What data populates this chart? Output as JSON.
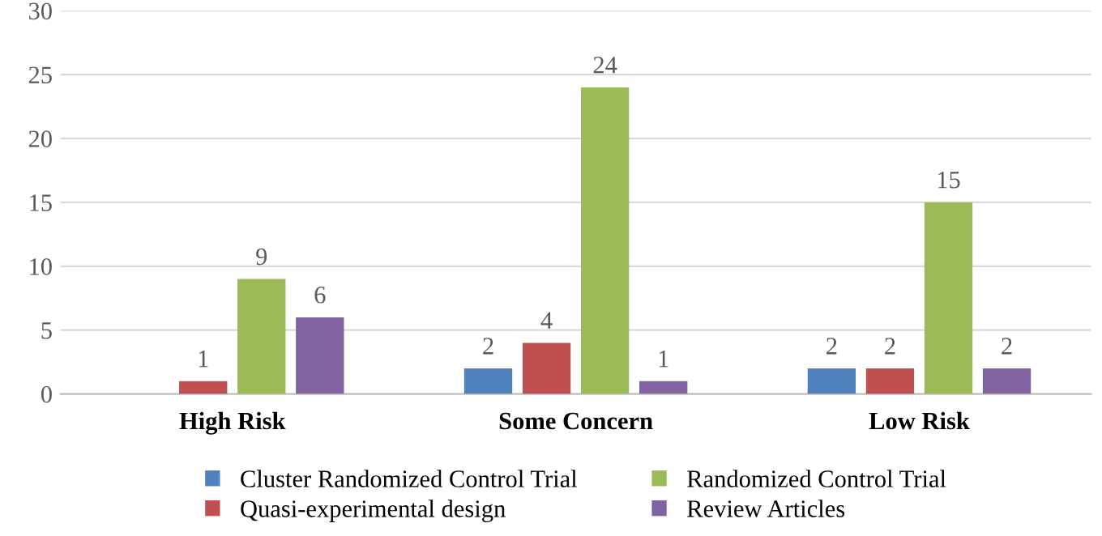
{
  "chart_data": {
    "type": "bar",
    "categories": [
      "High Risk",
      "Some Concern",
      "Low Risk"
    ],
    "series": [
      {
        "name": "Cluster Randomized Control Trial",
        "color": "#4f81bd",
        "values": [
          null,
          2,
          2
        ],
        "value_labels": [
          null,
          "2",
          "2"
        ]
      },
      {
        "name": "Quasi-experimental design",
        "color": "#c0504d",
        "values": [
          1,
          4,
          2
        ],
        "value_labels": [
          "1",
          "4",
          "2"
        ]
      },
      {
        "name": "Randomized Control Trial",
        "color": "#9bbb59",
        "values": [
          9,
          24,
          15
        ],
        "value_labels": [
          "9",
          "24",
          "15"
        ]
      },
      {
        "name": "Review Articles",
        "color": "#8064a2",
        "values": [
          6,
          1,
          2
        ],
        "value_labels": [
          "6",
          "1",
          "2"
        ]
      }
    ],
    "ylim": [
      0,
      30
    ],
    "yticks": [
      0,
      5,
      10,
      15,
      20,
      25,
      30
    ],
    "grid": "y",
    "legend": "bottom"
  }
}
